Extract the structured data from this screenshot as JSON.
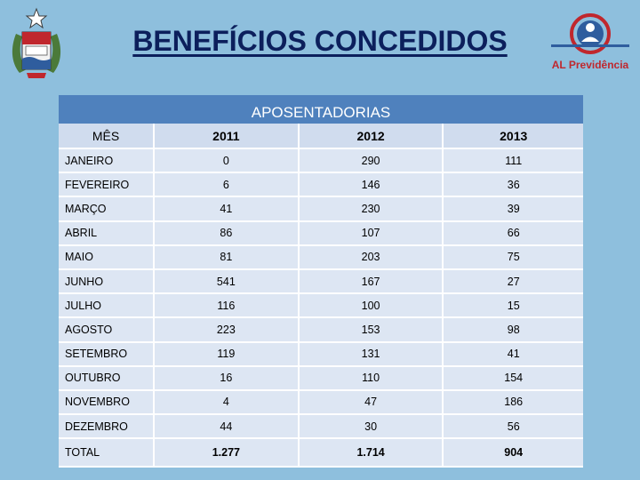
{
  "title": "BENEFÍCIOS CONCEDIDOS",
  "logo_text": "AL Previdência",
  "table": {
    "caption": "APOSENTADORIAS",
    "columns": [
      "MÊS",
      "2011",
      "2012",
      "2013"
    ],
    "rows": [
      [
        "JANEIRO",
        "0",
        "290",
        "111"
      ],
      [
        "FEVEREIRO",
        "6",
        "146",
        "36"
      ],
      [
        "MARÇO",
        "41",
        "230",
        "39"
      ],
      [
        "ABRIL",
        "86",
        "107",
        "66"
      ],
      [
        "MAIO",
        "81",
        "203",
        "75"
      ],
      [
        "JUNHO",
        "541",
        "167",
        "27"
      ],
      [
        "JULHO",
        "116",
        "100",
        "15"
      ],
      [
        "AGOSTO",
        "223",
        "153",
        "98"
      ],
      [
        "SETEMBRO",
        "119",
        "131",
        "41"
      ],
      [
        "OUTUBRO",
        "16",
        "110",
        "154"
      ],
      [
        "NOVEMBRO",
        "4",
        "47",
        "186"
      ],
      [
        "DEZEMBRO",
        "44",
        "30",
        "56"
      ]
    ],
    "total": [
      "TOTAL",
      "1.277",
      "1.714",
      "904"
    ]
  },
  "colors": {
    "title": "#0c1f5c",
    "header": "#4f81bd",
    "background": "#8ebfdd",
    "logo_red": "#c0272d"
  }
}
